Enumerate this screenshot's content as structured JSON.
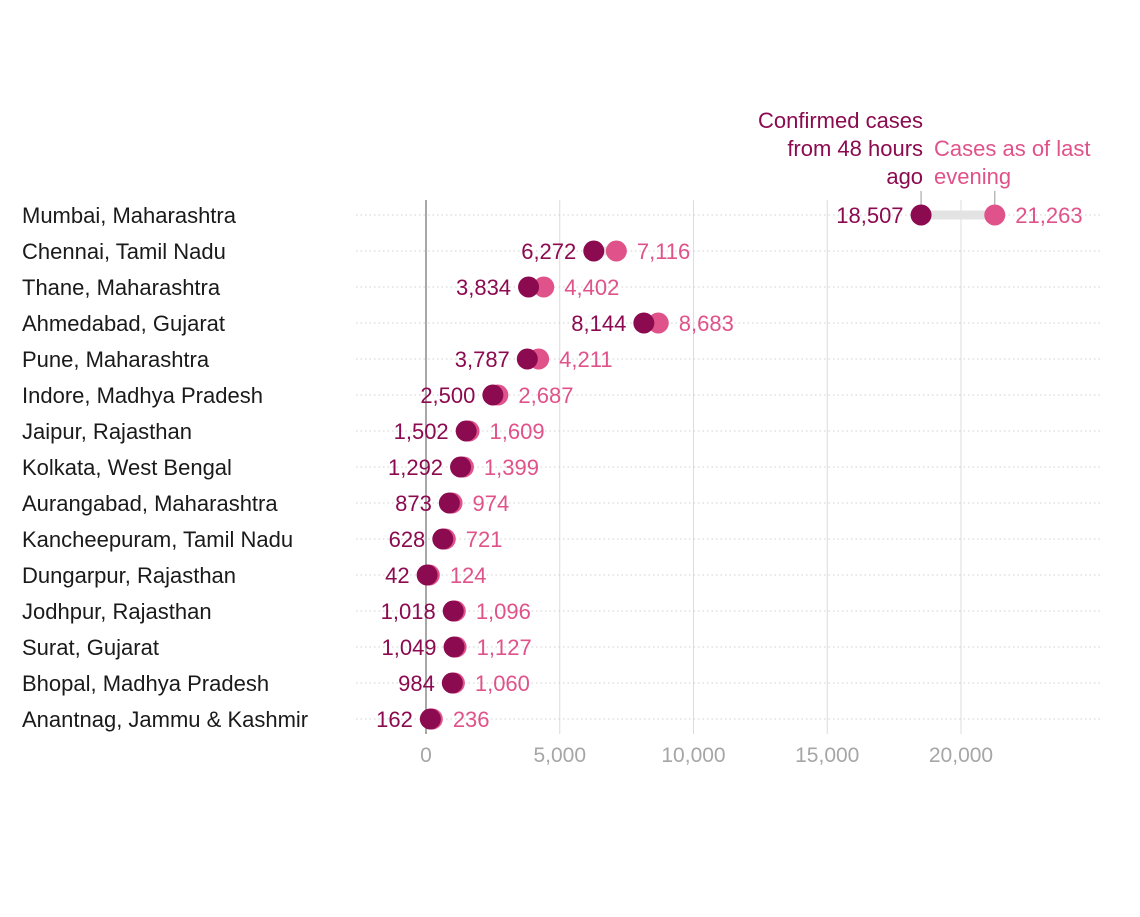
{
  "chart_data": {
    "type": "dot",
    "series": [
      {
        "name": "Confirmed cases from 48 hours ago",
        "color": "#8b0a50",
        "legend_lines": [
          "Confirmed cases",
          "from 48 hours",
          "ago"
        ]
      },
      {
        "name": "Cases as of last evening",
        "color": "#e0528a",
        "legend_lines": [
          "Cases as of last",
          "evening"
        ]
      }
    ],
    "connector_color": "#e3e3e3",
    "categories": [
      "Mumbai, Maharashtra",
      "Chennai, Tamil Nadu",
      "Thane, Maharashtra",
      "Ahmedabad, Gujarat",
      "Pune, Maharashtra",
      "Indore, Madhya Pradesh",
      "Jaipur, Rajasthan",
      "Kolkata, West Bengal",
      "Aurangabad, Maharashtra",
      "Kancheepuram, Tamil Nadu",
      "Dungarpur, Rajasthan",
      "Jodhpur, Rajasthan",
      "Surat, Gujarat",
      "Bhopal, Madhya Pradesh",
      "Anantnag, Jammu & Kashmir"
    ],
    "values_before": [
      18507,
      6272,
      3834,
      8144,
      3787,
      2500,
      1502,
      1292,
      873,
      628,
      42,
      1018,
      1049,
      984,
      162
    ],
    "values_after": [
      21263,
      7116,
      4402,
      8683,
      4211,
      2687,
      1609,
      1399,
      974,
      721,
      124,
      1096,
      1127,
      1060,
      236
    ],
    "labels_before": [
      "18,507",
      "6,272",
      "3,834",
      "8,144",
      "3,787",
      "2,500",
      "1,502",
      "1,292",
      "873",
      "628",
      "42",
      "1,018",
      "1,049",
      "984",
      "162"
    ],
    "labels_after": [
      "21,263",
      "7,116",
      "4,402",
      "8,683",
      "4,211",
      "2,687",
      "1,609",
      "1,399",
      "974",
      "721",
      "124",
      "1,096",
      "1,127",
      "1,060",
      "236"
    ],
    "x_ticks": [
      0,
      5000,
      10000,
      15000,
      20000
    ],
    "x_tick_labels": [
      "0",
      "5,000",
      "10,000",
      "15,000",
      "20,000"
    ],
    "xlim": [
      -2600,
      25000
    ],
    "grid": true,
    "legend_placement": "top-right, annotating first row"
  }
}
